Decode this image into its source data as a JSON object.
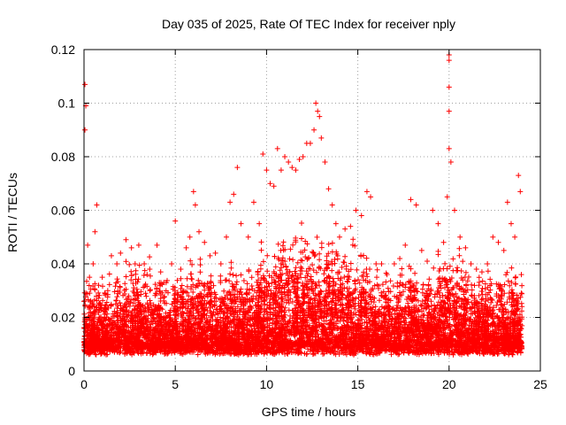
{
  "chart_data": {
    "type": "scatter",
    "title": "Day 035 of 2025, Rate Of TEC Index for receiver nply",
    "xlabel": "GPS time / hours",
    "ylabel": "ROTI / TECUs",
    "xlim": [
      0,
      25
    ],
    "ylim": [
      0,
      0.12
    ],
    "x_ticks": [
      0,
      5,
      10,
      15,
      20,
      25
    ],
    "x_tick_labels": [
      "0",
      "5",
      "10",
      "15",
      "20",
      "25"
    ],
    "y_ticks": [
      0,
      0.02,
      0.04,
      0.06,
      0.08,
      0.1,
      0.12
    ],
    "y_tick_labels": [
      "0",
      "0.02",
      "0.04",
      "0.06",
      "0.08",
      "0.1",
      "0.12"
    ],
    "grid": true,
    "marker": "+",
    "colors": {
      "series": "#ff0000",
      "axes": "#000000",
      "grid": "#a0a0a0"
    },
    "series": [
      {
        "name": "ROTI",
        "points_x": [
          0.0,
          0.05,
          0.05,
          0.1,
          0.2,
          0.3,
          0.5,
          0.6,
          0.7,
          0.8,
          1.0,
          1.3,
          1.5,
          1.8,
          2.0,
          2.3,
          2.6,
          2.8,
          3.0,
          3.3,
          3.6,
          4.0,
          4.2,
          4.5,
          4.8,
          5.0,
          5.3,
          5.6,
          5.8,
          6.0,
          6.1,
          6.3,
          6.6,
          6.9,
          7.2,
          7.5,
          7.8,
          8.0,
          8.2,
          8.4,
          8.6,
          9.0,
          9.3,
          9.6,
          9.8,
          10.0,
          10.2,
          10.4,
          10.6,
          10.8,
          11.0,
          11.2,
          11.4,
          11.6,
          11.8,
          12.0,
          12.2,
          12.4,
          12.6,
          12.7,
          12.8,
          12.9,
          13.0,
          13.2,
          13.4,
          13.6,
          13.8,
          14.0,
          14.3,
          14.6,
          14.9,
          15.2,
          15.5,
          15.7,
          16.0,
          16.3,
          16.6,
          17.0,
          17.3,
          17.6,
          17.9,
          18.2,
          18.5,
          18.8,
          19.1,
          19.4,
          19.7,
          19.9,
          20.0,
          20.0,
          20.0,
          20.0,
          20.0,
          20.1,
          20.3,
          20.6,
          20.9,
          21.2,
          21.5,
          21.8,
          22.1,
          22.4,
          22.7,
          23.0,
          23.2,
          23.4,
          23.6,
          23.8,
          23.9
        ],
        "points_y": [
          0.026,
          0.107,
          0.09,
          0.099,
          0.047,
          0.035,
          0.04,
          0.052,
          0.062,
          0.032,
          0.035,
          0.03,
          0.043,
          0.04,
          0.044,
          0.049,
          0.046,
          0.04,
          0.047,
          0.04,
          0.038,
          0.047,
          0.037,
          0.033,
          0.04,
          0.056,
          0.038,
          0.046,
          0.05,
          0.067,
          0.062,
          0.052,
          0.048,
          0.043,
          0.044,
          0.04,
          0.05,
          0.063,
          0.066,
          0.076,
          0.055,
          0.05,
          0.063,
          0.055,
          0.081,
          0.075,
          0.07,
          0.069,
          0.083,
          0.075,
          0.08,
          0.078,
          0.076,
          0.075,
          0.079,
          0.08,
          0.085,
          0.085,
          0.09,
          0.1,
          0.097,
          0.095,
          0.087,
          0.078,
          0.068,
          0.062,
          0.055,
          0.05,
          0.053,
          0.054,
          0.06,
          0.058,
          0.067,
          0.065,
          0.04,
          0.04,
          0.036,
          0.04,
          0.042,
          0.047,
          0.064,
          0.062,
          0.045,
          0.041,
          0.06,
          0.055,
          0.048,
          0.065,
          0.118,
          0.116,
          0.106,
          0.097,
          0.083,
          0.078,
          0.06,
          0.05,
          0.046,
          0.04,
          0.038,
          0.037,
          0.04,
          0.05,
          0.048,
          0.045,
          0.063,
          0.055,
          0.05,
          0.073,
          0.067
        ],
        "bulk_envelope_x": [
          0,
          1,
          2,
          3,
          4,
          5,
          6,
          7,
          8,
          9,
          10,
          11,
          12,
          13,
          14,
          15,
          16,
          17,
          18,
          19,
          20,
          21,
          22,
          23,
          24
        ],
        "bulk_envelope_y": [
          0.035,
          0.03,
          0.035,
          0.04,
          0.035,
          0.035,
          0.04,
          0.035,
          0.035,
          0.04,
          0.045,
          0.05,
          0.055,
          0.05,
          0.05,
          0.045,
          0.04,
          0.035,
          0.04,
          0.04,
          0.045,
          0.04,
          0.035,
          0.035,
          0.035
        ],
        "bulk_floor_y": 0.008
      }
    ]
  }
}
